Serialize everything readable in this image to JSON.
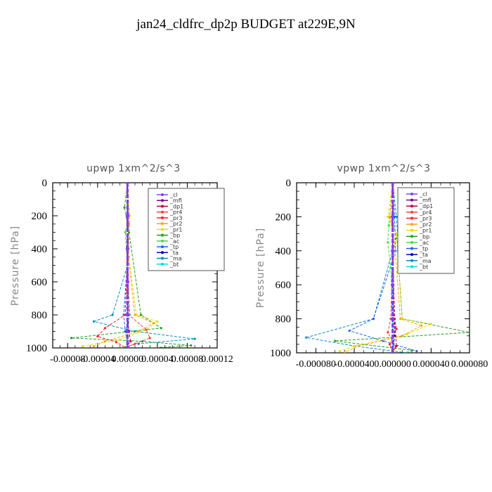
{
  "title": "jan24_cldfrc_dp2p  BUDGET at229E,9N",
  "chart_data": [
    {
      "type": "line",
      "title": "upwp   1xm^2/s^3",
      "ylabel": "Pressure [hPa]",
      "xlim": [
        -0.0001,
        0.00012
      ],
      "ylim": [
        1000,
        0
      ],
      "xticks": [
        -8e-05,
        -4e-05,
        0,
        4e-05,
        8e-05,
        0.00012
      ],
      "xtick_labels": [
        "-0.00008",
        "-0.00004",
        "0.00000",
        "0.00004",
        "0.00008",
        "0.00012"
      ],
      "yticks": [
        0,
        200,
        400,
        600,
        800,
        1000
      ],
      "ytick_labels": [
        "0",
        "200",
        "400",
        "600",
        "800",
        "1000"
      ],
      "legend_position": "top-right",
      "series": [
        {
          "name": "_cl",
          "color": "#8040ff",
          "x": [
            0,
            0,
            0,
            0,
            0,
            0
          ],
          "y": [
            0,
            200,
            400,
            600,
            800,
            1000
          ]
        },
        {
          "name": "_mfl",
          "color": "#800080",
          "x": [
            0,
            0,
            0,
            0,
            0,
            0
          ],
          "y": [
            0,
            200,
            400,
            600,
            800,
            1000
          ]
        },
        {
          "name": "_dp1",
          "color": "#c00040",
          "x": [
            0,
            0,
            0,
            0,
            2e-06,
            4e-06,
            -2e-06
          ],
          "y": [
            0,
            200,
            400,
            800,
            900,
            960,
            1000
          ]
        },
        {
          "name": "_pr4",
          "color": "#ff4040",
          "x": [
            0,
            0,
            0,
            2e-06,
            2.5e-05,
            3e-05,
            1e-05,
            -4e-06
          ],
          "y": [
            0,
            200,
            400,
            800,
            890,
            940,
            975,
            1000
          ]
        },
        {
          "name": "_pr3",
          "color": "#ff2020",
          "x": [
            0,
            0,
            0,
            -3e-06,
            -3e-05,
            -4e-05,
            -1.5e-05,
            -2e-06
          ],
          "y": [
            0,
            200,
            400,
            800,
            880,
            930,
            965,
            1000
          ]
        },
        {
          "name": "_pr2",
          "color": "#ffa020",
          "x": [
            0,
            2e-06,
            1e-06,
            1e-05,
            3.5e-05,
            1.5e-05,
            -3e-05,
            -4.5e-05
          ],
          "y": [
            0,
            250,
            450,
            800,
            850,
            900,
            960,
            990
          ]
        },
        {
          "name": "_pr1",
          "color": "#e0e000",
          "x": [
            0,
            3e-06,
            2e-06,
            1.2e-05,
            4e-05,
            2.5e-05,
            -1e-05,
            -6e-05
          ],
          "y": [
            0,
            200,
            450,
            800,
            840,
            890,
            950,
            990
          ]
        },
        {
          "name": "_bp",
          "color": "#20a020",
          "x": [
            0,
            -4e-06,
            2e-06,
            1.8e-05,
            4.5e-05,
            -7.5e-05,
            2e-05,
            8.5e-05,
            3e-05
          ],
          "y": [
            0,
            150,
            300,
            800,
            880,
            940,
            960,
            985,
            1000
          ]
        },
        {
          "name": "_ac",
          "color": "#40e040",
          "x": [
            0,
            2e-06,
            -3e-06,
            0,
            3e-06,
            -2e-06
          ],
          "y": [
            0,
            200,
            300,
            500,
            800,
            1000
          ]
        },
        {
          "name": "_tp",
          "color": "#2060ff",
          "x": [
            0,
            1e-06,
            1e-06,
            -5e-06,
            -3e-06,
            2e-06
          ],
          "y": [
            0,
            200,
            400,
            800,
            900,
            1000
          ]
        },
        {
          "name": "_ta",
          "color": "#0000c0",
          "x": [
            0,
            0,
            0,
            2e-06,
            -2e-06,
            0
          ],
          "y": [
            0,
            200,
            400,
            800,
            900,
            1000
          ]
        },
        {
          "name": "_ma",
          "color": "#0090c0",
          "x": [
            0,
            2e-06,
            0,
            -2e-05,
            -4.5e-05,
            1e-05,
            9e-05,
            1.5e-05,
            -1e-05
          ],
          "y": [
            0,
            300,
            500,
            800,
            840,
            900,
            945,
            975,
            1000
          ]
        },
        {
          "name": "_bt",
          "color": "#00e0e0",
          "x": [
            0,
            0,
            0,
            0,
            0
          ],
          "y": [
            0,
            200,
            400,
            800,
            1000
          ]
        }
      ]
    },
    {
      "type": "line",
      "title": "vpwp   1xm^2/s^3",
      "ylabel": "Pressure [hPa]",
      "xlim": [
        -0.0001,
        8e-05
      ],
      "ylim": [
        1000,
        0
      ],
      "xticks": [
        -8e-05,
        -4e-05,
        0,
        4e-05,
        8e-05
      ],
      "xtick_labels": [
        "-0.000080",
        "-0.000040",
        "0.000000",
        "0.000040",
        "0.000080"
      ],
      "yticks": [
        0,
        200,
        400,
        600,
        800,
        1000
      ],
      "ytick_labels": [
        "0",
        "200",
        "400",
        "600",
        "800",
        "1000"
      ],
      "legend_position": "top-right",
      "series": [
        {
          "name": "_cl",
          "color": "#8040ff",
          "x": [
            0,
            0,
            0,
            0,
            0,
            0
          ],
          "y": [
            0,
            200,
            400,
            600,
            800,
            1000
          ]
        },
        {
          "name": "_mfl",
          "color": "#800080",
          "x": [
            0,
            0,
            0,
            0,
            0,
            0
          ],
          "y": [
            0,
            200,
            400,
            600,
            800,
            1000
          ]
        },
        {
          "name": "_dp1",
          "color": "#c00040",
          "x": [
            0,
            0,
            0,
            2e-06,
            4e-06,
            0
          ],
          "y": [
            0,
            200,
            400,
            800,
            960,
            1000
          ]
        },
        {
          "name": "_pr4",
          "color": "#ff4040",
          "x": [
            0,
            0,
            0,
            -2e-06,
            -5e-06,
            3e-06,
            0
          ],
          "y": [
            0,
            200,
            400,
            800,
            880,
            960,
            1000
          ]
        },
        {
          "name": "_pr3",
          "color": "#ff2020",
          "x": [
            0,
            0,
            0,
            2e-06,
            4e-06,
            -3e-06,
            0
          ],
          "y": [
            0,
            200,
            400,
            800,
            860,
            950,
            1000
          ]
        },
        {
          "name": "_pr2",
          "color": "#ffa020",
          "x": [
            0,
            -3e-06,
            2e-06,
            8e-06,
            3e-05,
            1e-05,
            -3.5e-05,
            -5e-05
          ],
          "y": [
            0,
            200,
            350,
            800,
            840,
            900,
            960,
            995
          ]
        },
        {
          "name": "_pr1",
          "color": "#e0e000",
          "x": [
            0,
            -5e-06,
            4e-06,
            1e-05,
            4e-05,
            1.5e-05,
            -4e-05,
            -5.5e-05
          ],
          "y": [
            0,
            200,
            300,
            800,
            830,
            890,
            960,
            990
          ]
        },
        {
          "name": "_bp",
          "color": "#20a020",
          "x": [
            0,
            -3e-06,
            4e-06,
            1e-05,
            8e-05,
            -6e-05,
            2e-05,
            1.5e-05
          ],
          "y": [
            0,
            200,
            300,
            800,
            880,
            930,
            985,
            1000
          ]
        },
        {
          "name": "_ac",
          "color": "#40e040",
          "x": [
            0,
            -4e-06,
            -5e-06,
            -2e-06,
            0
          ],
          "y": [
            0,
            250,
            350,
            500,
            800
          ]
        },
        {
          "name": "_tp",
          "color": "#2060ff",
          "x": [
            0,
            2e-06,
            3e-06,
            -2e-05,
            -4.5e-05,
            -1e-05,
            2.5e-05
          ],
          "y": [
            0,
            200,
            400,
            800,
            870,
            930,
            990
          ]
        },
        {
          "name": "_ta",
          "color": "#0000c0",
          "x": [
            0,
            0,
            0,
            2e-06,
            0
          ],
          "y": [
            0,
            200,
            400,
            900,
            1000
          ]
        },
        {
          "name": "_ma",
          "color": "#0090c0",
          "x": [
            0,
            4e-06,
            5e-06,
            -2e-05,
            -9e-05,
            -4e-05,
            1.5e-05
          ],
          "y": [
            0,
            200,
            300,
            800,
            910,
            960,
            1000
          ]
        },
        {
          "name": "_bt",
          "color": "#00e0e0",
          "x": [
            0,
            0,
            0,
            0,
            0
          ],
          "y": [
            0,
            200,
            400,
            800,
            1000
          ]
        }
      ]
    }
  ]
}
